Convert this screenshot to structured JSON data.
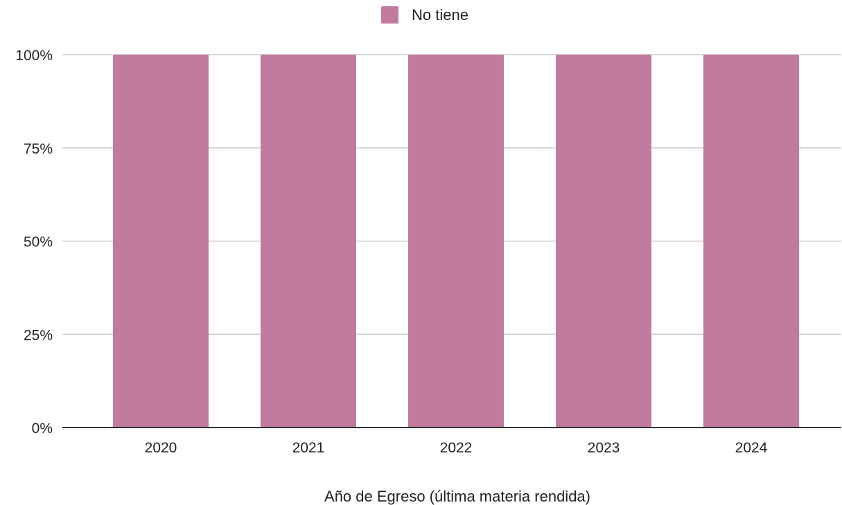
{
  "chart_data": {
    "type": "bar",
    "title": "",
    "xlabel": "Año de Egreso (última materia rendida)",
    "ylabel": "",
    "categories": [
      "2020",
      "2021",
      "2022",
      "2023",
      "2024"
    ],
    "series": [
      {
        "name": "No tiene",
        "color": "#c07b9f",
        "values": [
          100,
          100,
          100,
          100,
          100
        ]
      }
    ],
    "ylim": [
      0,
      100
    ],
    "yticks": [
      0,
      25,
      50,
      75,
      100
    ],
    "ytick_labels": [
      "0%",
      "25%",
      "50%",
      "75%",
      "100%"
    ],
    "grid": true,
    "legend_position": "top-center",
    "stacked": true
  }
}
